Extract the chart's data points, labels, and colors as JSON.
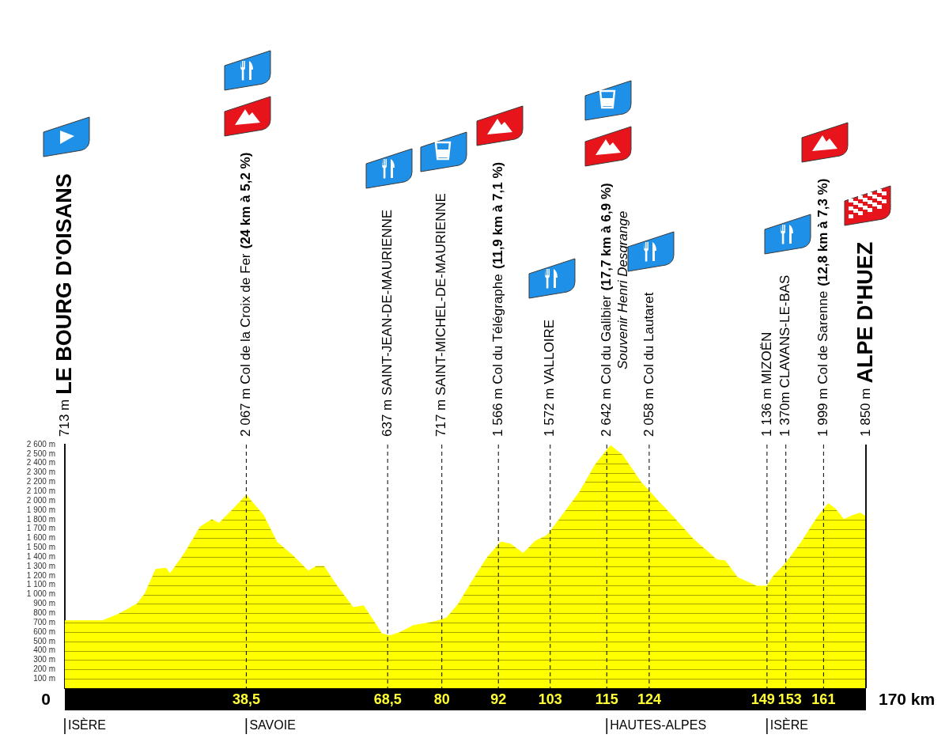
{
  "chart_data": {
    "type": "area",
    "color": "#ffff00",
    "marker": "none",
    "grid": "y",
    "x": [
      0,
      8,
      10.9,
      12.5,
      15.3,
      17,
      19.3,
      21.5,
      22.3,
      25.4,
      28.7,
      31.2,
      32.7,
      34.9,
      38.5,
      42.1,
      45,
      48.3,
      51.7,
      53.3,
      55,
      57.2,
      61.2,
      63.4,
      67.3,
      69,
      71.3,
      74,
      78.5,
      81,
      83.5,
      86.9,
      89.7,
      92.5,
      94.5,
      97.3,
      99.8,
      102.3,
      103.7,
      109.3,
      112.6,
      115.8,
      118.3,
      122.1,
      125.5,
      128.9,
      133.4,
      138.4,
      140.1,
      142.8,
      146.8,
      149,
      150.4,
      152.9,
      156.3,
      159.6,
      162,
      163.6,
      165.3,
      167,
      168.8,
      170
    ],
    "values": [
      720,
      720,
      780,
      820,
      900,
      1010,
      1270,
      1280,
      1220,
      1440,
      1720,
      1800,
      1760,
      1870,
      2060,
      1850,
      1560,
      1420,
      1250,
      1300,
      1300,
      1130,
      860,
      880,
      580,
      560,
      600,
      670,
      710,
      750,
      900,
      1180,
      1400,
      1560,
      1540,
      1440,
      1570,
      1630,
      1720,
      2100,
      2390,
      2590,
      2490,
      2210,
      2020,
      1840,
      1590,
      1370,
      1360,
      1180,
      1090,
      1090,
      1200,
      1330,
      1560,
      1820,
      1970,
      1910,
      1800,
      1840,
      1870,
      1830
    ],
    "xlim": [
      0,
      170
    ],
    "xticks": [
      {
        "value": 0,
        "label": null
      },
      {
        "value": 38.5,
        "label": "38,5"
      },
      {
        "value": 68.5,
        "label": "68,5"
      },
      80,
      92,
      103,
      115,
      124,
      149,
      153,
      161,
      {
        "value": 170,
        "label": null
      }
    ],
    "ylim": [
      0,
      2600
    ],
    "yticks": [
      {
        "value": 100,
        "label": "100 m"
      },
      {
        "value": 200,
        "label": "200 m"
      },
      {
        "value": 300,
        "label": "300 m"
      },
      {
        "value": 400,
        "label": "400 m"
      },
      {
        "value": 500,
        "label": "500 m"
      },
      {
        "value": 600,
        "label": "600 m"
      },
      {
        "value": 700,
        "label": "700 m"
      },
      {
        "value": 800,
        "label": "800 m"
      },
      {
        "value": 900,
        "label": "900 m"
      },
      {
        "value": 1000,
        "label": "1 000 m"
      },
      {
        "value": 1100,
        "label": "1 100 m"
      },
      {
        "value": 1200,
        "label": "1 200 m"
      },
      {
        "value": 1300,
        "label": "1 300 m"
      },
      {
        "value": 1400,
        "label": "1 400 m"
      },
      {
        "value": 1500,
        "label": "1 500 m"
      },
      {
        "value": 1600,
        "label": "1 600 m"
      },
      {
        "value": 1700,
        "label": "1 700 m"
      },
      {
        "value": 1800,
        "label": "1 800 m"
      },
      {
        "value": 1900,
        "label": "1 900 m"
      },
      {
        "value": 2000,
        "label": "2 000 m"
      },
      {
        "value": 2100,
        "label": "2 100 m"
      },
      {
        "value": 2200,
        "label": "2 200 m"
      },
      {
        "value": 2300,
        "label": "2 300 m"
      },
      {
        "value": 2400,
        "label": "2 400 m"
      },
      {
        "value": 2500,
        "label": "2 500 m"
      },
      {
        "value": 2600,
        "label": "2 600 m"
      }
    ],
    "ref_lines": [
      {
        "axis": "x",
        "value": 38.5,
        "label": "2 067 m Col de la Croix de Fer",
        "line_style": "dashed"
      },
      {
        "axis": "x",
        "value": 68.5,
        "label": "637 m SAINT-JEAN-DE-MAURIENNE",
        "line_style": "dashed"
      },
      {
        "axis": "x",
        "value": 80,
        "label": "717 m SAINT-MICHEL-DE-MAURIENNE",
        "line_style": "dashed"
      },
      {
        "axis": "x",
        "value": 92,
        "label": "1 566 m Col du Télégraphe",
        "line_style": "dashed"
      },
      {
        "axis": "x",
        "value": 103,
        "label": "1 572 m VALLOIRE",
        "line_style": "dashed"
      },
      {
        "axis": "x",
        "value": 115,
        "label": "2 642 m Col du Galibier",
        "line_style": "dashed"
      },
      {
        "axis": "x",
        "value": 124,
        "label": "2 058 m Col du Lautaret",
        "line_style": "dashed"
      },
      {
        "axis": "x",
        "value": 149,
        "label": "1 136 m MIZOËN",
        "line_style": "dashed"
      },
      {
        "axis": "x",
        "value": 153,
        "label": "1 370m CLAVANS-LE-BAS",
        "line_style": "dashed"
      },
      {
        "axis": "x",
        "value": 161,
        "label": "1 999 m Col de Sarenne",
        "line_style": "dashed"
      },
      {
        "axis": "x",
        "value": 170,
        "label": "1 850 m",
        "line_style": "solid"
      }
    ],
    "annotations": [
      "713 m",
      "LE BOURG D'OISANS",
      "(24 km à 5,2 %)",
      "(11,9 km à 7,1 %)",
      "(17,7 km à 6,9 %)",
      "Souvenir Henri Desgrange",
      "(12,8 km à 7,3 %)",
      "ALPE D'HUEZ",
      "0",
      "170 km",
      "ISÈRE",
      "SAVOIE",
      "HAUTES-ALPES",
      "ISÈRE"
    ]
  }
}
